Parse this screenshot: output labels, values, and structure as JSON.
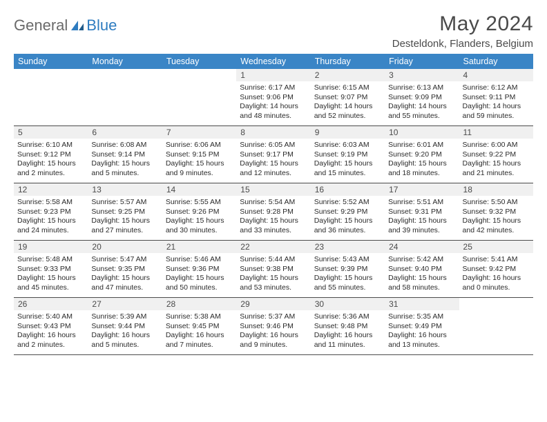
{
  "brand": {
    "general": "General",
    "blue": "Blue"
  },
  "header": {
    "month_title": "May 2024",
    "location": "Desteldonk, Flanders, Belgium"
  },
  "colors": {
    "header_bar": "#3a85c6",
    "header_text": "#ffffff",
    "daynum_bg": "#f0f0f0",
    "text": "#4a4a4a",
    "body_text": "#2a2a2a",
    "rule": "#4a4a4a",
    "logo_gray": "#6a6a6a",
    "logo_blue": "#2e7cc0"
  },
  "weekdays": [
    "Sunday",
    "Monday",
    "Tuesday",
    "Wednesday",
    "Thursday",
    "Friday",
    "Saturday"
  ],
  "weeks": [
    [
      {
        "empty": true
      },
      {
        "empty": true
      },
      {
        "empty": true
      },
      {
        "n": "1",
        "sunrise": "6:17 AM",
        "sunset": "9:06 PM",
        "daylight": "14 hours and 48 minutes."
      },
      {
        "n": "2",
        "sunrise": "6:15 AM",
        "sunset": "9:07 PM",
        "daylight": "14 hours and 52 minutes."
      },
      {
        "n": "3",
        "sunrise": "6:13 AM",
        "sunset": "9:09 PM",
        "daylight": "14 hours and 55 minutes."
      },
      {
        "n": "4",
        "sunrise": "6:12 AM",
        "sunset": "9:11 PM",
        "daylight": "14 hours and 59 minutes."
      }
    ],
    [
      {
        "n": "5",
        "sunrise": "6:10 AM",
        "sunset": "9:12 PM",
        "daylight": "15 hours and 2 minutes."
      },
      {
        "n": "6",
        "sunrise": "6:08 AM",
        "sunset": "9:14 PM",
        "daylight": "15 hours and 5 minutes."
      },
      {
        "n": "7",
        "sunrise": "6:06 AM",
        "sunset": "9:15 PM",
        "daylight": "15 hours and 9 minutes."
      },
      {
        "n": "8",
        "sunrise": "6:05 AM",
        "sunset": "9:17 PM",
        "daylight": "15 hours and 12 minutes."
      },
      {
        "n": "9",
        "sunrise": "6:03 AM",
        "sunset": "9:19 PM",
        "daylight": "15 hours and 15 minutes."
      },
      {
        "n": "10",
        "sunrise": "6:01 AM",
        "sunset": "9:20 PM",
        "daylight": "15 hours and 18 minutes."
      },
      {
        "n": "11",
        "sunrise": "6:00 AM",
        "sunset": "9:22 PM",
        "daylight": "15 hours and 21 minutes."
      }
    ],
    [
      {
        "n": "12",
        "sunrise": "5:58 AM",
        "sunset": "9:23 PM",
        "daylight": "15 hours and 24 minutes."
      },
      {
        "n": "13",
        "sunrise": "5:57 AM",
        "sunset": "9:25 PM",
        "daylight": "15 hours and 27 minutes."
      },
      {
        "n": "14",
        "sunrise": "5:55 AM",
        "sunset": "9:26 PM",
        "daylight": "15 hours and 30 minutes."
      },
      {
        "n": "15",
        "sunrise": "5:54 AM",
        "sunset": "9:28 PM",
        "daylight": "15 hours and 33 minutes."
      },
      {
        "n": "16",
        "sunrise": "5:52 AM",
        "sunset": "9:29 PM",
        "daylight": "15 hours and 36 minutes."
      },
      {
        "n": "17",
        "sunrise": "5:51 AM",
        "sunset": "9:31 PM",
        "daylight": "15 hours and 39 minutes."
      },
      {
        "n": "18",
        "sunrise": "5:50 AM",
        "sunset": "9:32 PM",
        "daylight": "15 hours and 42 minutes."
      }
    ],
    [
      {
        "n": "19",
        "sunrise": "5:48 AM",
        "sunset": "9:33 PM",
        "daylight": "15 hours and 45 minutes."
      },
      {
        "n": "20",
        "sunrise": "5:47 AM",
        "sunset": "9:35 PM",
        "daylight": "15 hours and 47 minutes."
      },
      {
        "n": "21",
        "sunrise": "5:46 AM",
        "sunset": "9:36 PM",
        "daylight": "15 hours and 50 minutes."
      },
      {
        "n": "22",
        "sunrise": "5:44 AM",
        "sunset": "9:38 PM",
        "daylight": "15 hours and 53 minutes."
      },
      {
        "n": "23",
        "sunrise": "5:43 AM",
        "sunset": "9:39 PM",
        "daylight": "15 hours and 55 minutes."
      },
      {
        "n": "24",
        "sunrise": "5:42 AM",
        "sunset": "9:40 PM",
        "daylight": "15 hours and 58 minutes."
      },
      {
        "n": "25",
        "sunrise": "5:41 AM",
        "sunset": "9:42 PM",
        "daylight": "16 hours and 0 minutes."
      }
    ],
    [
      {
        "n": "26",
        "sunrise": "5:40 AM",
        "sunset": "9:43 PM",
        "daylight": "16 hours and 2 minutes."
      },
      {
        "n": "27",
        "sunrise": "5:39 AM",
        "sunset": "9:44 PM",
        "daylight": "16 hours and 5 minutes."
      },
      {
        "n": "28",
        "sunrise": "5:38 AM",
        "sunset": "9:45 PM",
        "daylight": "16 hours and 7 minutes."
      },
      {
        "n": "29",
        "sunrise": "5:37 AM",
        "sunset": "9:46 PM",
        "daylight": "16 hours and 9 minutes."
      },
      {
        "n": "30",
        "sunrise": "5:36 AM",
        "sunset": "9:48 PM",
        "daylight": "16 hours and 11 minutes."
      },
      {
        "n": "31",
        "sunrise": "5:35 AM",
        "sunset": "9:49 PM",
        "daylight": "16 hours and 13 minutes."
      },
      {
        "empty": true
      }
    ]
  ],
  "labels": {
    "sunrise": "Sunrise:",
    "sunset": "Sunset:",
    "daylight": "Daylight:"
  }
}
